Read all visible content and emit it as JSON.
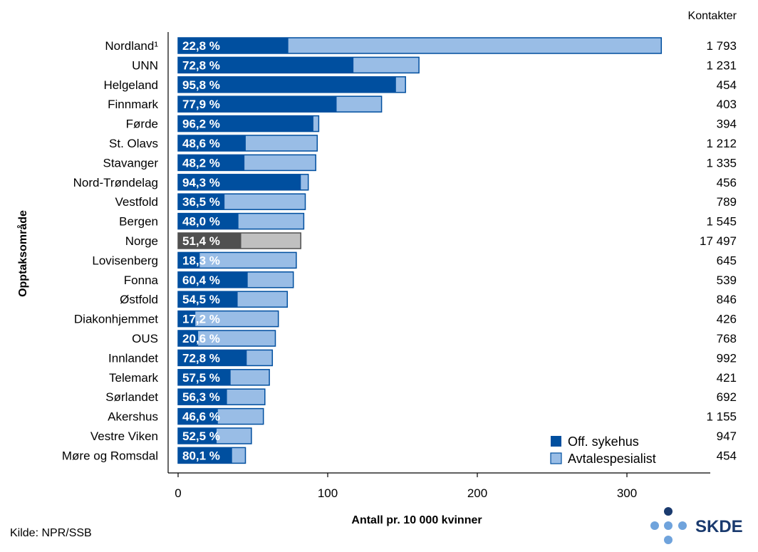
{
  "chart_data": {
    "type": "bar",
    "orientation": "horizontal",
    "stacked": true,
    "categories": [
      "Nordland¹",
      "UNN",
      "Helgeland",
      "Finnmark",
      "Førde",
      "St. Olavs",
      "Stavanger",
      "Nord-Trøndelag",
      "Vestfold",
      "Bergen",
      "Norge",
      "Lovisenberg",
      "Fonna",
      "Østfold",
      "Diakonhjemmet",
      "OUS",
      "Innlandet",
      "Telemark",
      "Sørlandet",
      "Akershus",
      "Vestre Viken",
      "Møre og Romsdal"
    ],
    "totals": [
      323,
      161,
      152,
      136,
      94,
      93,
      92,
      87,
      85,
      84,
      82,
      79,
      77,
      73,
      67,
      65,
      63,
      61,
      58,
      57,
      49,
      45
    ],
    "share_labels": [
      "22,8 %",
      "72,8 %",
      "95,8 %",
      "77,9 %",
      "96,2 %",
      "48,6 %",
      "48,2 %",
      "94,3 %",
      "36,5 %",
      "48,0 %",
      "51,4 %",
      "18,3 %",
      "60,4 %",
      "54,5 %",
      "17,2 %",
      "20,6 %",
      "72,8 %",
      "57,5 %",
      "56,3 %",
      "46,6 %",
      "52,5 %",
      "80,1 %"
    ],
    "share_values": [
      22.8,
      72.8,
      95.8,
      77.9,
      96.2,
      48.6,
      48.2,
      94.3,
      36.5,
      48.0,
      51.4,
      18.3,
      60.4,
      54.5,
      17.2,
      20.6,
      72.8,
      57.5,
      56.3,
      46.6,
      52.5,
      80.1
    ],
    "contacts": [
      "1 793",
      "1 231",
      "454",
      "403",
      "394",
      "1 212",
      "1 335",
      "456",
      "789",
      "1 545",
      "17 497",
      "645",
      "539",
      "846",
      "426",
      "768",
      "992",
      "421",
      "692",
      "1 155",
      "947",
      "454"
    ],
    "highlight_category": "Norge",
    "series": [
      {
        "name": "Off. sykehus",
        "color": "#004f9f"
      },
      {
        "name": "Avtalespesialist",
        "color": "#99bde6"
      }
    ],
    "highlight_colors": {
      "dark": "#505050",
      "light": "#c0c0c0"
    },
    "border_color": "#004f9f",
    "xlim": [
      0,
      350
    ],
    "xticks": [
      0,
      100,
      200,
      300
    ],
    "xlabel": "Antall pr. 10 000 kvinner",
    "ylabel": "Opptaksområde",
    "contacts_header": "Kontakter",
    "legend_position": "bottom-right"
  },
  "source": "Kilde: NPR/SSB",
  "logo": {
    "text": "SKDE",
    "dark_color": "#1a3a6e",
    "light_color": "#6fa3dc"
  }
}
